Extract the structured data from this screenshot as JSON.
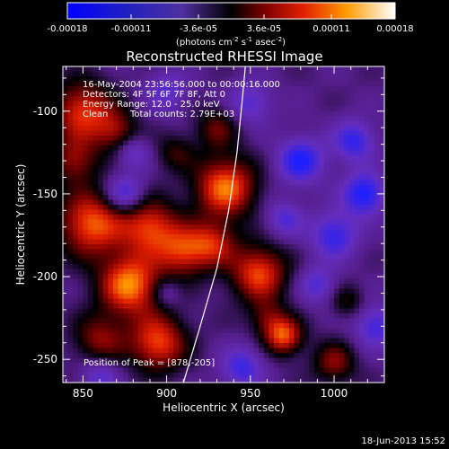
{
  "colorbar": {
    "tick_labels": [
      "-0.00018",
      "-0.00011",
      "-3.6e-05",
      "3.6e-05",
      "0.00011",
      "0.00018"
    ],
    "tick_values": [
      -0.00018,
      -0.00011,
      -3.6e-05,
      3.6e-05,
      0.00011,
      0.00018
    ],
    "range": [
      -0.00018,
      0.00018
    ],
    "units_prefix": "(photons cm",
    "units_exp1": "-2",
    "units_mid1": " s",
    "units_exp2": "-1",
    "units_mid2": " asec",
    "units_exp3": "-2",
    "units_suffix": ")"
  },
  "annotations": {
    "line1": "16-May-2004 23:56:56.000 to 00:00:16.000",
    "line2": "Detectors: 4F 5F 6F 7F 8F, Att 0",
    "line3": "Energy Range: 12.0 - 25.0 keV",
    "line4_left": "Clean",
    "line4_right": "Total counts: 2.79E+03",
    "peak": "Position of Peak = [878,-205]"
  },
  "footer": {
    "timestamp": "18-Jun-2013 15:52"
  },
  "chart_data": {
    "type": "heatmap",
    "title": "Reconstructed RHESSI Image",
    "xlabel": "Heliocentric X (arcsec)",
    "ylabel": "Heliocentric Y (arcsec)",
    "xlim": [
      838,
      1030
    ],
    "ylim": [
      -264,
      -73
    ],
    "x_ticks": [
      850,
      900,
      950,
      1000
    ],
    "x_tick_labels": [
      "850",
      "900",
      "950",
      "1000"
    ],
    "y_ticks": [
      -100,
      -150,
      -200,
      -250
    ],
    "y_tick_labels": [
      "-100",
      "-150",
      "-200",
      "-250"
    ],
    "colormap": "hot-diverging",
    "peak_position": [
      878,
      -205
    ],
    "blobs": [
      {
        "x": 878,
        "y": -205,
        "s": 13,
        "a": 1.0
      },
      {
        "x": 855,
        "y": -168,
        "s": 14,
        "a": 0.9
      },
      {
        "x": 890,
        "y": -170,
        "s": 12,
        "a": 0.78
      },
      {
        "x": 910,
        "y": -185,
        "s": 11,
        "a": 0.7
      },
      {
        "x": 935,
        "y": -146,
        "s": 13,
        "a": 0.95
      },
      {
        "x": 928,
        "y": -180,
        "s": 10,
        "a": 0.6
      },
      {
        "x": 850,
        "y": -100,
        "s": 13,
        "a": 0.8
      },
      {
        "x": 845,
        "y": -130,
        "s": 10,
        "a": 0.55
      },
      {
        "x": 870,
        "y": -112,
        "s": 9,
        "a": 0.5
      },
      {
        "x": 860,
        "y": -238,
        "s": 11,
        "a": 0.55
      },
      {
        "x": 895,
        "y": -240,
        "s": 12,
        "a": 0.85
      },
      {
        "x": 955,
        "y": -198,
        "s": 12,
        "a": 0.85
      },
      {
        "x": 960,
        "y": -225,
        "s": 8,
        "a": 0.4
      },
      {
        "x": 970,
        "y": -236,
        "s": 8,
        "a": 0.85
      },
      {
        "x": 1000,
        "y": -252,
        "s": 9,
        "a": 0.55
      },
      {
        "x": 1008,
        "y": -215,
        "s": 7,
        "a": 0.35
      },
      {
        "x": 930,
        "y": -110,
        "s": 9,
        "a": 0.45
      },
      {
        "x": 905,
        "y": -125,
        "s": 8,
        "a": 0.35
      },
      {
        "x": 980,
        "y": -130,
        "s": 10,
        "a": -0.7
      },
      {
        "x": 1012,
        "y": -118,
        "s": 9,
        "a": -0.6
      },
      {
        "x": 1018,
        "y": -150,
        "s": 9,
        "a": -0.75
      },
      {
        "x": 1000,
        "y": -175,
        "s": 10,
        "a": -0.6
      },
      {
        "x": 990,
        "y": -205,
        "s": 8,
        "a": -0.45
      },
      {
        "x": 950,
        "y": -95,
        "s": 9,
        "a": -0.45
      },
      {
        "x": 900,
        "y": -88,
        "s": 9,
        "a": -0.4
      },
      {
        "x": 875,
        "y": -150,
        "s": 8,
        "a": -0.6
      },
      {
        "x": 945,
        "y": -255,
        "s": 9,
        "a": -0.55
      },
      {
        "x": 900,
        "y": -210,
        "s": 6,
        "a": -0.3
      },
      {
        "x": 860,
        "y": -260,
        "s": 8,
        "a": -0.45
      },
      {
        "x": 1025,
        "y": -230,
        "s": 9,
        "a": -0.55
      },
      {
        "x": 970,
        "y": -165,
        "s": 8,
        "a": -0.45
      },
      {
        "x": 880,
        "y": -125,
        "s": 7,
        "a": -0.4
      }
    ],
    "limb_curve": [
      [
        910,
        -264
      ],
      [
        920,
        -230
      ],
      [
        930,
        -195
      ],
      [
        937,
        -160
      ],
      [
        942,
        -125
      ],
      [
        945,
        -95
      ],
      [
        947,
        -73
      ]
    ]
  }
}
